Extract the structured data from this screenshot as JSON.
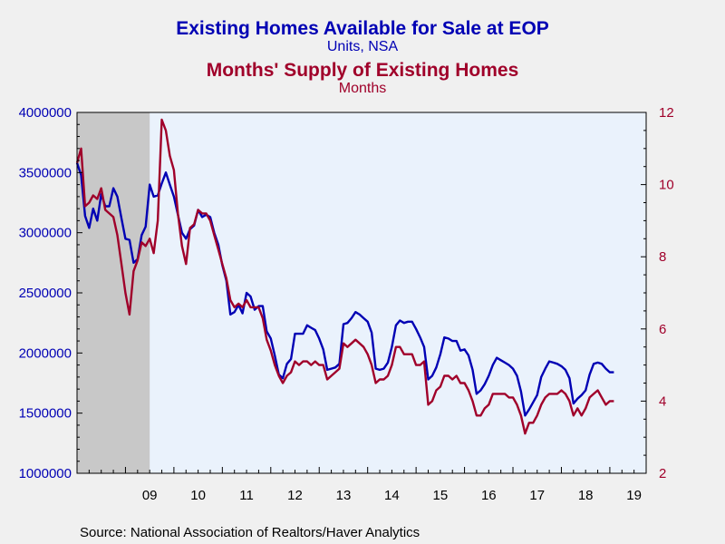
{
  "chart_data": {
    "type": "line",
    "titles": [
      {
        "title": "Existing Homes Available for Sale at EOP",
        "subtitle": "Units, NSA",
        "color": "#0000b4"
      },
      {
        "title": "Months' Supply of Existing Homes",
        "subtitle": "Months",
        "color": "#a0002a"
      }
    ],
    "source": "Source:  National Association of Realtors/Haver Analytics",
    "x_tick_labels": [
      "09",
      "10",
      "11",
      "12",
      "13",
      "14",
      "15",
      "16",
      "17",
      "18",
      "19"
    ],
    "x_tick_years": [
      2009,
      2010,
      2011,
      2012,
      2013,
      2014,
      2015,
      2016,
      2017,
      2018,
      2019
    ],
    "xlim": [
      2008.0,
      2019.75
    ],
    "recession_shading": [
      2008.0,
      2009.5
    ],
    "left_axis": {
      "ylim": [
        1000000,
        4000000
      ],
      "ticks": [
        1000000,
        1500000,
        2000000,
        2500000,
        3000000,
        3500000,
        4000000
      ],
      "tick_labels": [
        "1000000",
        "1500000",
        "2000000",
        "2500000",
        "3000000",
        "3500000",
        "4000000"
      ],
      "color": "#0000b4"
    },
    "right_axis": {
      "ylim": [
        2,
        12
      ],
      "ticks": [
        2,
        4,
        6,
        8,
        10,
        12
      ],
      "tick_labels": [
        "2",
        "4",
        "6",
        "8",
        "10",
        "12"
      ],
      "color": "#a0002a"
    },
    "colors": {
      "background": "#f0f0f0",
      "plot_background": "#eaf2fc",
      "recession": "#c8c8c8",
      "inventory": "#0000b4",
      "supply": "#a0002a"
    },
    "series": [
      {
        "key": "inventory",
        "axis": "left",
        "start": 2008.0,
        "step": 0.0833333,
        "values": [
          3580000,
          3480000,
          3140000,
          3040000,
          3200000,
          3100000,
          3320000,
          3220000,
          3220000,
          3370000,
          3300000,
          3120000,
          2950000,
          2940000,
          2750000,
          2780000,
          2980000,
          3050000,
          3400000,
          3300000,
          3310000,
          3410000,
          3500000,
          3400000,
          3300000,
          3150000,
          3000000,
          2950000,
          3030000,
          3060000,
          3190000,
          3130000,
          3150000,
          3130000,
          3000000,
          2900000,
          2730000,
          2600000,
          2320000,
          2340000,
          2400000,
          2330000,
          2500000,
          2470000,
          2360000,
          2390000,
          2390000,
          2180000,
          2120000,
          1980000,
          1820000,
          1790000,
          1910000,
          1950000,
          2160000,
          2160000,
          2160000,
          2230000,
          2210000,
          2190000,
          2120000,
          2030000,
          1860000,
          1870000,
          1880000,
          1910000,
          2240000,
          2250000,
          2290000,
          2340000,
          2320000,
          2290000,
          2260000,
          2170000,
          1870000,
          1860000,
          1870000,
          1920000,
          2050000,
          2230000,
          2270000,
          2250000,
          2260000,
          2260000,
          2200000,
          2130000,
          2050000,
          1780000,
          1810000,
          1880000,
          1990000,
          2130000,
          2120000,
          2100000,
          2100000,
          2020000,
          2030000,
          1980000,
          1860000,
          1660000,
          1690000,
          1740000,
          1810000,
          1900000,
          1960000,
          1940000,
          1920000,
          1900000,
          1870000,
          1810000,
          1680000,
          1480000,
          1530000,
          1590000,
          1650000,
          1800000,
          1870000,
          1930000,
          1920000,
          1910000,
          1890000,
          1860000,
          1790000,
          1580000,
          1620000,
          1650000,
          1690000,
          1820000,
          1910000,
          1920000,
          1910000,
          1870000,
          1840000,
          1840000
        ]
      },
      {
        "key": "supply",
        "axis": "right",
        "start": 2008.0,
        "step": 0.0833333,
        "values": [
          10.6,
          11.0,
          9.4,
          9.5,
          9.7,
          9.6,
          9.9,
          9.3,
          9.2,
          9.1,
          8.6,
          7.8,
          7.0,
          6.4,
          7.6,
          7.9,
          8.4,
          8.3,
          8.5,
          8.1,
          9.0,
          11.8,
          11.5,
          10.8,
          10.4,
          9.2,
          8.3,
          7.8,
          8.8,
          8.9,
          9.3,
          9.2,
          9.2,
          9.0,
          8.6,
          8.2,
          7.8,
          7.4,
          6.8,
          6.6,
          6.7,
          6.6,
          6.8,
          6.6,
          6.6,
          6.6,
          6.3,
          5.7,
          5.4,
          5.0,
          4.7,
          4.5,
          4.7,
          4.8,
          5.1,
          5.0,
          5.1,
          5.1,
          5.0,
          5.1,
          5.0,
          5.0,
          4.6,
          4.7,
          4.8,
          4.9,
          5.6,
          5.5,
          5.6,
          5.7,
          5.6,
          5.5,
          5.3,
          5.0,
          4.5,
          4.6,
          4.6,
          4.7,
          5.0,
          5.5,
          5.5,
          5.3,
          5.3,
          5.3,
          5.0,
          5.0,
          5.1,
          3.9,
          4.0,
          4.3,
          4.4,
          4.7,
          4.7,
          4.6,
          4.7,
          4.5,
          4.5,
          4.3,
          4.0,
          3.6,
          3.6,
          3.8,
          3.9,
          4.2,
          4.2,
          4.2,
          4.2,
          4.1,
          4.1,
          3.9,
          3.6,
          3.1,
          3.4,
          3.4,
          3.6,
          3.9,
          4.1,
          4.2,
          4.2,
          4.2,
          4.3,
          4.2,
          4.0,
          3.6,
          3.8,
          3.6,
          3.8,
          4.1,
          4.2,
          4.3,
          4.1,
          3.9,
          4.0,
          4.0
        ]
      }
    ]
  }
}
